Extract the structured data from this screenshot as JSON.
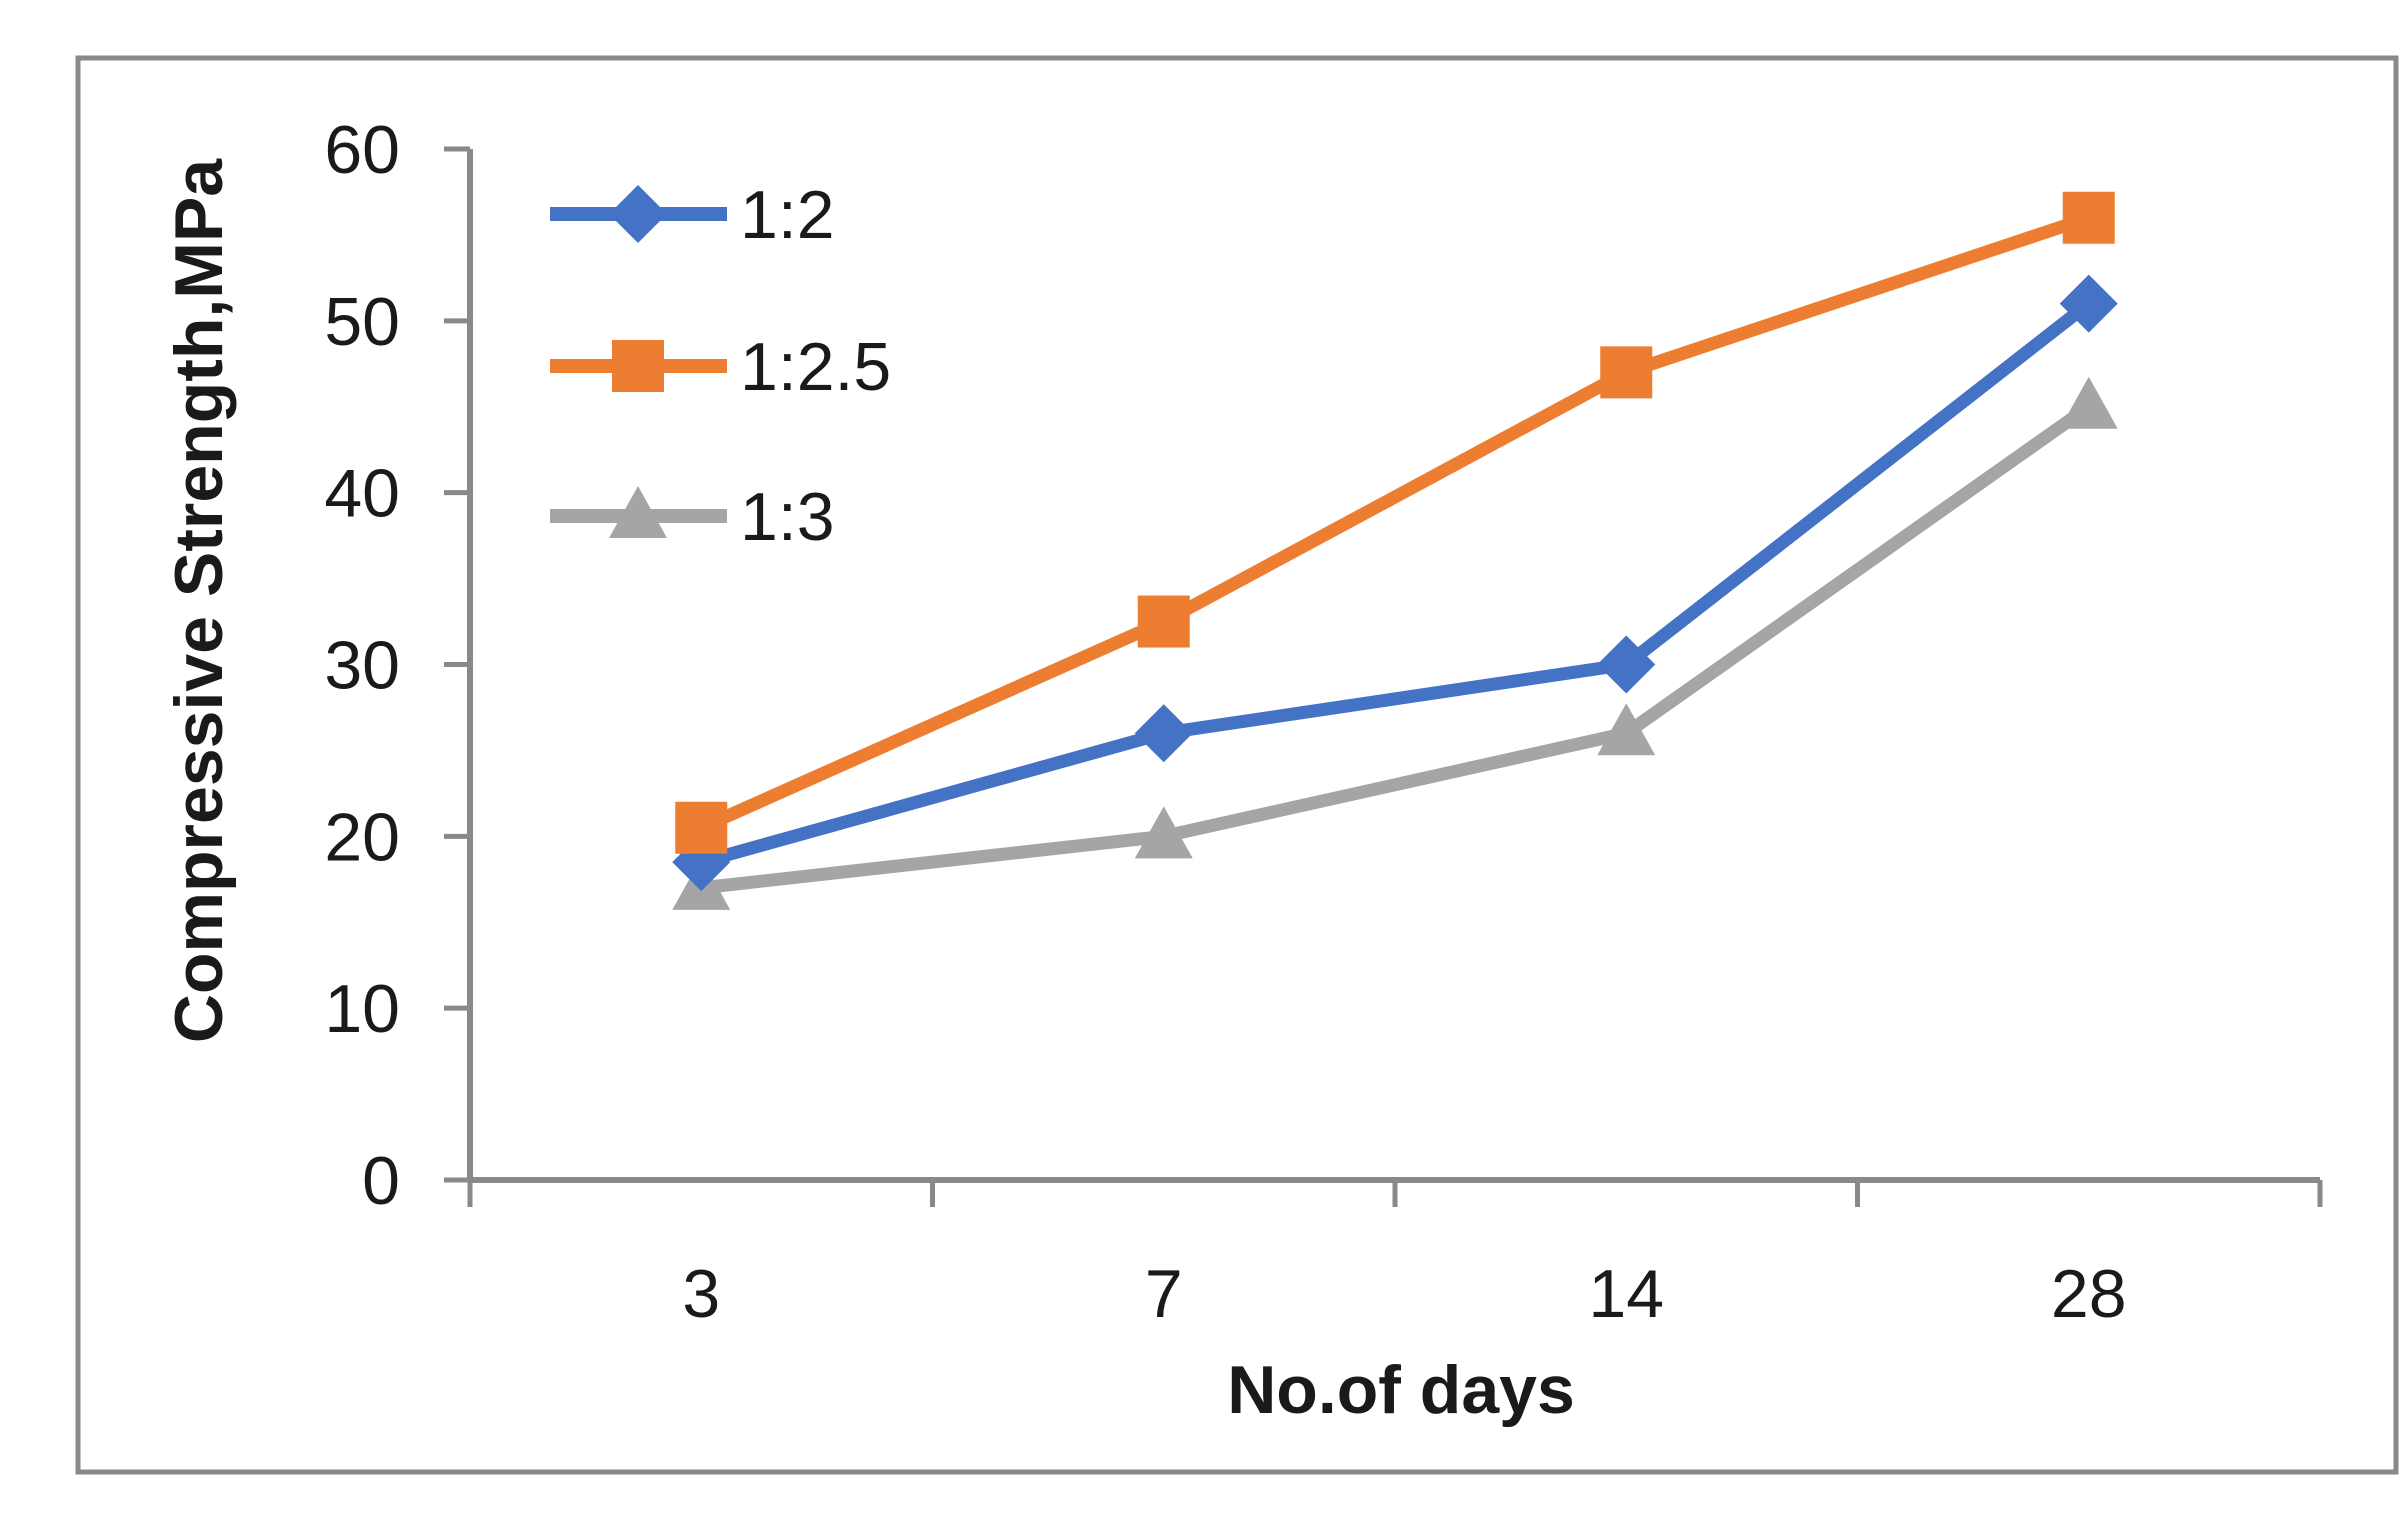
{
  "figure": {
    "background": "#ffffff",
    "border_color": "#898989"
  },
  "chart_data": {
    "type": "line",
    "categories": [
      "3",
      "7",
      "14",
      "28"
    ],
    "series": [
      {
        "name": "1:2",
        "color": "#4472C4",
        "marker": "diamond",
        "values": [
          18.5,
          26,
          30,
          51
        ]
      },
      {
        "name": "1:2.5",
        "color": "#ED7D31",
        "marker": "square",
        "values": [
          20.5,
          32.5,
          47,
          56
        ]
      },
      {
        "name": "1:3",
        "color": "#A5A5A5",
        "marker": "triangle",
        "values": [
          17,
          20,
          26,
          45
        ]
      }
    ],
    "title": "",
    "xlabel": "No.of days",
    "ylabel": "Compressive Strength,MPa",
    "ylim": [
      0,
      60
    ],
    "y_ticks": [
      0,
      10,
      20,
      30,
      40,
      50,
      60
    ],
    "grid": "off",
    "legend_position": "inside-top-left",
    "axis_color": "#898989",
    "text_color": "#1a1a1a"
  }
}
